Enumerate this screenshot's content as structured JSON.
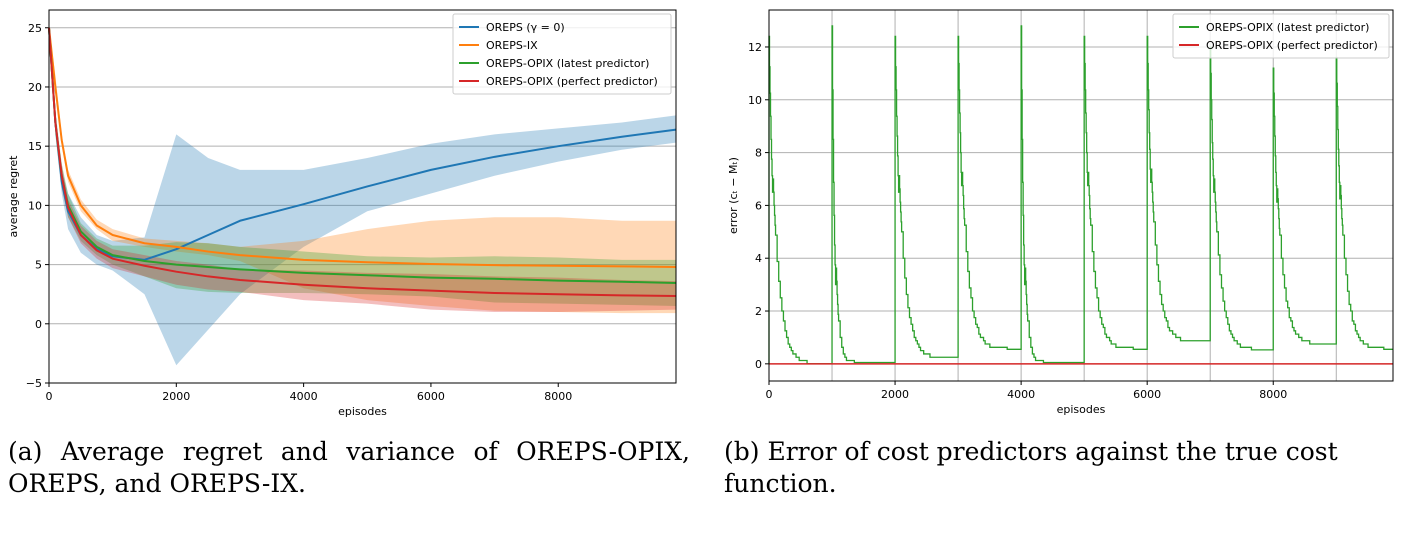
{
  "chart_data": [
    {
      "type": "line",
      "xlabel": "episodes",
      "ylabel": "average regret",
      "xlim": [
        0,
        9850
      ],
      "ylim": [
        -5,
        26.5
      ],
      "xticks": [
        0,
        2000,
        4000,
        6000,
        8000
      ],
      "yticks": [
        -5,
        0,
        5,
        10,
        15,
        20,
        25
      ],
      "grid": "horizontal",
      "legend_placement": "top-right",
      "x": [
        0,
        100,
        200,
        300,
        500,
        750,
        1000,
        1500,
        2000,
        2500,
        3000,
        4000,
        5000,
        6000,
        7000,
        8000,
        9000,
        9850
      ],
      "series": [
        {
          "name": "OREPS (γ = 0)",
          "color": "#1f77b4",
          "values": [
            25,
            17,
            12,
            9.5,
            7.5,
            6.3,
            5.7,
            5.4,
            6.3,
            7.5,
            8.7,
            10.1,
            11.6,
            13,
            14.1,
            15,
            15.8,
            16.4
          ],
          "lower": [
            25,
            16,
            11,
            8,
            6,
            5,
            4.5,
            2.5,
            -3.5,
            -0.5,
            2.5,
            6.5,
            9.5,
            11,
            12.5,
            13.7,
            14.7,
            15.3
          ],
          "upper": [
            25,
            18,
            13,
            11,
            9,
            7.5,
            7,
            7.3,
            16,
            14,
            13,
            13,
            14,
            15.2,
            16,
            16.5,
            17,
            17.6
          ]
        },
        {
          "name": "OREPS-IX",
          "color": "#ff7f0e",
          "values": [
            25,
            20,
            15.5,
            12.5,
            10,
            8.3,
            7.5,
            6.8,
            6.5,
            6.1,
            5.8,
            5.4,
            5.2,
            5.05,
            4.95,
            4.9,
            4.85,
            4.8
          ],
          "lower": [
            25,
            19.5,
            15,
            12,
            9.5,
            8,
            7,
            6.5,
            6.1,
            5.8,
            5.3,
            3,
            2,
            1.5,
            1.1,
            1,
            0.9,
            0.9
          ],
          "upper": [
            25,
            21,
            16,
            13,
            10.5,
            8.8,
            8,
            7.2,
            7,
            6.8,
            6.5,
            7,
            8,
            8.7,
            9,
            9,
            8.7,
            8.7
          ]
        },
        {
          "name": "OREPS-OPIX (latest predictor)",
          "color": "#2ca02c",
          "values": [
            25,
            17,
            12.5,
            10,
            7.8,
            6.5,
            5.8,
            5.3,
            5,
            4.8,
            4.6,
            4.3,
            4.1,
            3.9,
            3.8,
            3.65,
            3.55,
            3.45
          ],
          "lower": [
            25,
            16,
            11.5,
            9,
            7,
            5.8,
            5,
            4,
            3,
            2.7,
            2.6,
            2.6,
            2.5,
            2.3,
            1.8,
            1.7,
            1.6,
            1.5
          ],
          "upper": [
            25,
            18,
            13.5,
            11,
            8.5,
            7.2,
            6.6,
            6.6,
            6.9,
            6.8,
            6.5,
            6.1,
            5.7,
            5.6,
            5.7,
            5.6,
            5.4,
            5.4
          ]
        },
        {
          "name": "OREPS-OPIX (perfect predictor)",
          "color": "#d62728",
          "values": [
            25,
            17,
            12.5,
            9.8,
            7.5,
            6.2,
            5.5,
            4.9,
            4.4,
            4,
            3.7,
            3.3,
            3,
            2.8,
            2.6,
            2.5,
            2.4,
            2.35
          ],
          "lower": [
            25,
            16.5,
            11.5,
            9,
            6.8,
            5.5,
            4.7,
            4,
            3.3,
            2.9,
            2.7,
            2,
            1.7,
            1.2,
            1,
            1,
            1.1,
            1.2
          ],
          "upper": [
            25,
            17.5,
            13.5,
            10.5,
            8.3,
            7,
            6.3,
            5.8,
            5.3,
            5,
            4.6,
            4.5,
            4.3,
            4.2,
            4,
            3.9,
            3.7,
            3.6
          ]
        }
      ]
    },
    {
      "type": "line",
      "xlabel": "episodes",
      "ylabel": "error (cₜ − Mₜ)",
      "xlim": [
        0,
        9900
      ],
      "ylim": [
        -0.65,
        13.4
      ],
      "xticks": [
        0,
        2000,
        4000,
        6000,
        8000
      ],
      "yticks": [
        0,
        2,
        4,
        6,
        8,
        10,
        12
      ],
      "grid": "both",
      "legend_placement": "top-right",
      "series": [
        {
          "name": "OREPS-OPIX (latest predictor)",
          "color": "#2ca02c",
          "segments": [
            {
              "start": 0,
              "peak": 12.4,
              "floor": 0
            },
            {
              "start": 1000,
              "peak": 12.8,
              "floor": 0.05
            },
            {
              "start": 2000,
              "peak": 12.4,
              "floor": 0.22
            },
            {
              "start": 3000,
              "peak": 12.4,
              "floor": 0.55
            },
            {
              "start": 4000,
              "peak": 12.8,
              "floor": 0.05
            },
            {
              "start": 5000,
              "peak": 12.4,
              "floor": 0.55
            },
            {
              "start": 6000,
              "peak": 12.4,
              "floor": 0.83
            },
            {
              "start": 7000,
              "peak": 12.0,
              "floor": 0.53
            },
            {
              "start": 8000,
              "peak": 11.2,
              "floor": 0.75
            },
            {
              "start": 9000,
              "peak": 11.6,
              "floor": 0.55
            }
          ]
        },
        {
          "name": "OREPS-OPIX (perfect predictor)",
          "color": "#d62728",
          "constant": 0
        }
      ]
    }
  ],
  "captions": {
    "a": "(a) Average regret and variance of OREPS-OPIX, OREPS, and OREPS-IX.",
    "b": "(b) Error of cost predictors against the true cost function."
  }
}
